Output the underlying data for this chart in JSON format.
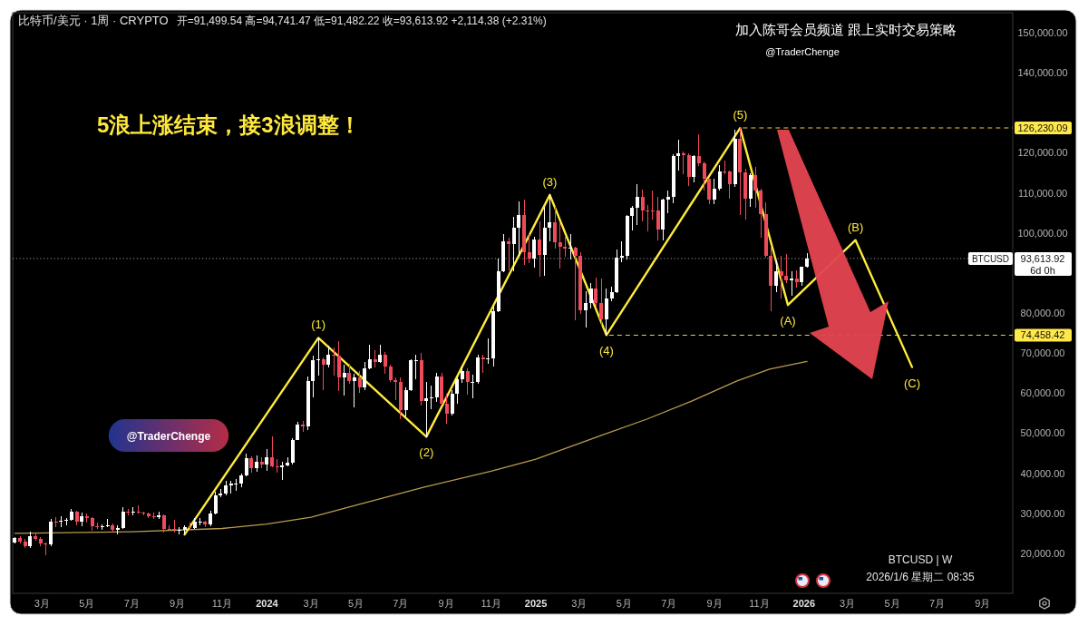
{
  "chart_data": {
    "type": "candlestick",
    "title": "比特币/美元 · 1周 · CRYPTO",
    "subtitle": "开=91,499.54 高=94,741.47 低=91,482.22 收=93,613.92 +2,114.38 (+2.31%)",
    "x": [
      "2023-01-23",
      "2023-01-30",
      "2023-02-06",
      "2023-02-13",
      "2023-02-20",
      "2023-02-27",
      "2023-03-06",
      "2023-03-13",
      "2023-03-20",
      "2023-03-27",
      "2023-04-03",
      "2023-04-10",
      "2023-04-17",
      "2023-04-24",
      "2023-05-01",
      "2023-05-08",
      "2023-05-15",
      "2023-05-22",
      "2023-05-29",
      "2023-06-05",
      "2023-06-12",
      "2023-06-19",
      "2023-06-26",
      "2023-07-03",
      "2023-07-10",
      "2023-07-17",
      "2023-07-24",
      "2023-07-31",
      "2023-08-07",
      "2023-08-14",
      "2023-08-21",
      "2023-08-28",
      "2023-09-04",
      "2023-09-11",
      "2023-09-18",
      "2023-09-25",
      "2023-10-02",
      "2023-10-09",
      "2023-10-16",
      "2023-10-23",
      "2023-10-30",
      "2023-11-06",
      "2023-11-13",
      "2023-11-20",
      "2023-11-27",
      "2023-12-04",
      "2023-12-11",
      "2023-12-18",
      "2023-12-25",
      "2024-01-01",
      "2024-01-08",
      "2024-01-15",
      "2024-01-22",
      "2024-01-29",
      "2024-02-05",
      "2024-02-12",
      "2024-02-19",
      "2024-02-26",
      "2024-03-04",
      "2024-03-11",
      "2024-03-18",
      "2024-03-25",
      "2024-04-01",
      "2024-04-08",
      "2024-04-15",
      "2024-04-22",
      "2024-04-29",
      "2024-05-06",
      "2024-05-13",
      "2024-05-20",
      "2024-05-27",
      "2024-06-03",
      "2024-06-10",
      "2024-06-17",
      "2024-06-24",
      "2024-07-01",
      "2024-07-08",
      "2024-07-15",
      "2024-07-22",
      "2024-07-29",
      "2024-08-05",
      "2024-08-12",
      "2024-08-19",
      "2024-08-26",
      "2024-09-02",
      "2024-09-09",
      "2024-09-16",
      "2024-09-23",
      "2024-09-30",
      "2024-10-07",
      "2024-10-14",
      "2024-10-21",
      "2024-10-28",
      "2024-11-04",
      "2024-11-11",
      "2024-11-18",
      "2024-11-25",
      "2024-12-02",
      "2024-12-09",
      "2024-12-16",
      "2024-12-23",
      "2024-12-30",
      "2025-01-06",
      "2025-01-13",
      "2025-01-20",
      "2025-01-27",
      "2025-02-03",
      "2025-02-10",
      "2025-02-17",
      "2025-02-24",
      "2025-03-03",
      "2025-03-10",
      "2025-03-17",
      "2025-03-24",
      "2025-03-31",
      "2025-04-07",
      "2025-04-14",
      "2025-04-21",
      "2025-04-28",
      "2025-05-05",
      "2025-05-12",
      "2025-05-19",
      "2025-05-26",
      "2025-06-02",
      "2025-06-09",
      "2025-06-16",
      "2025-06-23",
      "2025-06-30",
      "2025-07-07",
      "2025-07-14",
      "2025-07-21",
      "2025-07-28",
      "2025-08-04",
      "2025-08-11",
      "2025-08-18",
      "2025-08-25",
      "2025-09-01",
      "2025-09-08",
      "2025-09-15",
      "2025-09-22",
      "2025-09-29",
      "2025-10-06",
      "2025-10-13",
      "2025-10-20",
      "2025-10-27",
      "2025-11-03",
      "2025-11-10",
      "2025-11-17",
      "2025-11-24",
      "2025-12-01",
      "2025-12-08",
      "2025-12-15",
      "2025-12-22",
      "2025-12-29",
      "2026-01-05"
    ],
    "ohlc": [
      [
        22700,
        23950,
        22500,
        23750
      ],
      [
        23750,
        24250,
        22550,
        22950
      ],
      [
        22950,
        23450,
        21450,
        21800
      ],
      [
        21800,
        25250,
        21550,
        24300
      ],
      [
        24300,
        25150,
        23300,
        23500
      ],
      [
        23500,
        23900,
        21950,
        22350
      ],
      [
        22350,
        22600,
        19550,
        22150
      ],
      [
        22150,
        28450,
        21900,
        28000
      ],
      [
        28000,
        28900,
        26600,
        27950
      ],
      [
        27950,
        29200,
        26550,
        28200
      ],
      [
        28200,
        28800,
        27200,
        28350
      ],
      [
        28350,
        31000,
        28200,
        30300
      ],
      [
        30300,
        30500,
        27100,
        27800
      ],
      [
        27800,
        30000,
        26950,
        29250
      ],
      [
        29250,
        29800,
        27700,
        28800
      ],
      [
        28800,
        29000,
        25800,
        26800
      ],
      [
        26800,
        27600,
        26200,
        26750
      ],
      [
        26750,
        27200,
        25900,
        26850
      ],
      [
        26850,
        28450,
        26600,
        27100
      ],
      [
        27100,
        27350,
        25350,
        25850
      ],
      [
        25850,
        26800,
        24800,
        26350
      ],
      [
        26350,
        31400,
        26250,
        30450
      ],
      [
        30450,
        31000,
        29500,
        30150
      ],
      [
        30150,
        31350,
        29700,
        30300
      ],
      [
        30300,
        31800,
        29950,
        30250
      ],
      [
        30250,
        30350,
        29500,
        29850
      ],
      [
        29850,
        30000,
        28900,
        29300
      ],
      [
        29300,
        30050,
        28600,
        29050
      ],
      [
        29050,
        30250,
        28700,
        29400
      ],
      [
        29400,
        29500,
        25200,
        26100
      ],
      [
        26100,
        26800,
        25800,
        26000
      ],
      [
        26000,
        28150,
        25400,
        25850
      ],
      [
        25850,
        26400,
        24900,
        25850
      ],
      [
        25850,
        26900,
        24950,
        26550
      ],
      [
        26550,
        27450,
        26000,
        26250
      ],
      [
        26250,
        28600,
        26100,
        27950
      ],
      [
        27950,
        28600,
        27200,
        27950
      ],
      [
        27950,
        28000,
        26550,
        27150
      ],
      [
        27150,
        30400,
        26950,
        29950
      ],
      [
        29950,
        35200,
        29800,
        34500
      ],
      [
        34500,
        35900,
        34100,
        35000
      ],
      [
        35000,
        37950,
        34550,
        37050
      ],
      [
        37050,
        37950,
        35000,
        37450
      ],
      [
        37450,
        38400,
        35700,
        37450
      ],
      [
        37450,
        39900,
        36700,
        39450
      ],
      [
        39450,
        44750,
        39300,
        43800
      ],
      [
        43800,
        44000,
        40300,
        41350
      ],
      [
        41350,
        44300,
        40550,
        42850
      ],
      [
        42850,
        43800,
        41400,
        42250
      ],
      [
        42250,
        45900,
        40750,
        43950
      ],
      [
        43950,
        49050,
        41500,
        41750
      ],
      [
        41750,
        43500,
        40300,
        41600
      ],
      [
        41600,
        42800,
        38500,
        42050
      ],
      [
        42050,
        43900,
        41800,
        42600
      ],
      [
        42600,
        48600,
        42300,
        48300
      ],
      [
        48300,
        52800,
        48300,
        52150
      ],
      [
        52150,
        52950,
        50500,
        51700
      ],
      [
        51700,
        64000,
        50900,
        63100
      ],
      [
        63100,
        69200,
        59000,
        68300
      ],
      [
        68300,
        73800,
        64600,
        68400
      ],
      [
        68400,
        68900,
        60800,
        67200
      ],
      [
        67200,
        71800,
        66600,
        69650
      ],
      [
        69650,
        71300,
        64500,
        69350
      ],
      [
        69350,
        72800,
        60650,
        63900
      ],
      [
        63900,
        66900,
        59600,
        64950
      ],
      [
        64950,
        67200,
        62400,
        63100
      ],
      [
        63100,
        64700,
        56500,
        63900
      ],
      [
        63900,
        65500,
        60200,
        61500
      ],
      [
        61500,
        67700,
        60800,
        66250
      ],
      [
        66250,
        71950,
        66100,
        68500
      ],
      [
        68500,
        70600,
        66600,
        67750
      ],
      [
        67750,
        71950,
        67600,
        69650
      ],
      [
        69650,
        70200,
        64950,
        66700
      ],
      [
        66700,
        66950,
        63000,
        63200
      ],
      [
        63200,
        63800,
        58400,
        62700
      ],
      [
        62700,
        63800,
        53500,
        55850
      ],
      [
        55850,
        61350,
        54300,
        60800
      ],
      [
        60800,
        68350,
        60700,
        68250
      ],
      [
        68250,
        69400,
        63500,
        68250
      ],
      [
        68250,
        70000,
        57100,
        58100
      ],
      [
        58100,
        62700,
        49050,
        58700
      ],
      [
        58700,
        61800,
        56100,
        59000
      ],
      [
        59000,
        65050,
        57850,
        64200
      ],
      [
        64200,
        64900,
        57200,
        57300
      ],
      [
        57300,
        59800,
        52550,
        54850
      ],
      [
        54850,
        60650,
        54600,
        59950
      ],
      [
        59950,
        64100,
        57500,
        63550
      ],
      [
        63550,
        66500,
        62600,
        65600
      ],
      [
        65600,
        66000,
        59800,
        62800
      ],
      [
        62800,
        64500,
        58900,
        62850
      ],
      [
        62850,
        69450,
        62500,
        69000
      ],
      [
        69000,
        69500,
        65100,
        68350
      ],
      [
        68350,
        73650,
        67500,
        68750
      ],
      [
        68750,
        81500,
        66800,
        80350
      ],
      [
        80350,
        93450,
        80250,
        90500
      ],
      [
        90500,
        99600,
        90400,
        97900
      ],
      [
        97900,
        98800,
        90800,
        97250
      ],
      [
        97250,
        104000,
        90500,
        101200
      ],
      [
        101200,
        107800,
        94200,
        104400
      ],
      [
        104400,
        108300,
        92200,
        95200
      ],
      [
        95200,
        99900,
        92500,
        93700
      ],
      [
        93700,
        99000,
        91500,
        98300
      ],
      [
        98300,
        102700,
        89250,
        94500
      ],
      [
        94500,
        106400,
        89300,
        101300
      ],
      [
        101300,
        109500,
        98000,
        102600
      ],
      [
        102600,
        106500,
        96200,
        97700
      ],
      [
        97700,
        102500,
        91200,
        96450
      ],
      [
        96450,
        98900,
        94100,
        96100
      ],
      [
        96100,
        99500,
        93400,
        96250
      ],
      [
        96250,
        96500,
        78200,
        94250
      ],
      [
        94250,
        95000,
        80000,
        80700
      ],
      [
        80700,
        85300,
        76600,
        82600
      ],
      [
        82600,
        87400,
        81150,
        86050
      ],
      [
        86050,
        88750,
        81550,
        82400
      ],
      [
        82400,
        88500,
        77000,
        78350
      ],
      [
        78350,
        85900,
        74458.42,
        83700
      ],
      [
        83700,
        86500,
        83000,
        85200
      ],
      [
        85200,
        95700,
        85000,
        93800
      ],
      [
        93800,
        97900,
        92800,
        94250
      ],
      [
        94250,
        104300,
        93400,
        104200
      ],
      [
        104200,
        106600,
        100700,
        106400
      ],
      [
        106400,
        111980,
        102000,
        109000
      ],
      [
        109000,
        110700,
        103100,
        105700
      ],
      [
        105700,
        106800,
        100400,
        105600
      ],
      [
        105600,
        110500,
        103400,
        105500
      ],
      [
        105500,
        108900,
        98200,
        100950
      ],
      [
        100950,
        108500,
        98200,
        108350
      ],
      [
        108350,
        110500,
        105100,
        108950
      ],
      [
        108950,
        119500,
        107500,
        119100
      ],
      [
        119100,
        123200,
        115700,
        119800
      ],
      [
        119800,
        120250,
        114700,
        119450
      ],
      [
        119450,
        119800,
        111900,
        114100
      ],
      [
        114100,
        119300,
        112700,
        119300
      ],
      [
        119300,
        124450,
        116800,
        117400
      ],
      [
        117400,
        117650,
        110700,
        113500
      ],
      [
        113500,
        113500,
        107300,
        108250
      ],
      [
        108250,
        113400,
        107300,
        111150
      ],
      [
        111150,
        116800,
        110600,
        115300
      ],
      [
        115300,
        117900,
        114700,
        115250
      ],
      [
        115250,
        115400,
        108650,
        112100
      ],
      [
        112100,
        125700,
        111700,
        123500
      ],
      [
        123500,
        126230.09,
        104600,
        115150
      ],
      [
        115150,
        116000,
        103500,
        108650
      ],
      [
        108650,
        114800,
        106700,
        114500
      ],
      [
        114500,
        116400,
        106300,
        110550
      ],
      [
        110550,
        111000,
        98900,
        104700
      ],
      [
        104700,
        107500,
        94000,
        94200
      ],
      [
        94200,
        96600,
        80600,
        86800
      ],
      [
        86800,
        93100,
        85300,
        90400
      ],
      [
        90400,
        94100,
        83800,
        89300
      ],
      [
        89300,
        94600,
        87500,
        88200
      ],
      [
        88200,
        90400,
        84400,
        88600
      ],
      [
        88600,
        90500,
        86500,
        87800
      ],
      [
        87800,
        91500,
        87000,
        91500
      ],
      [
        91499.54,
        94741.47,
        91482.22,
        93613.92
      ]
    ],
    "series": [
      {
        "type": "line",
        "color": "#b89c4e",
        "x": [
          "2023-01-23",
          "2023-07-01",
          "2023-11-01",
          "2024-01-01",
          "2024-03-01",
          "2024-05-01",
          "2024-08-01",
          "2024-11-01",
          "2025-01-01",
          "2025-04-01",
          "2025-06-01",
          "2025-08-01",
          "2025-10-01",
          "2025-11-15",
          "2026-01-05"
        ],
        "values": [
          25000,
          25400,
          26200,
          27300,
          29000,
          32000,
          36500,
          40500,
          43500,
          49500,
          53500,
          58000,
          63000,
          66000,
          67900
        ]
      },
      {
        "type": "line",
        "color": "#ffeb3b",
        "x": [
          "2023-09-11",
          "2024-03-11",
          "2024-08-05",
          "2025-01-20",
          "2025-04-07",
          "2025-10-06",
          "2025-12-10",
          "2026-03-12",
          "2026-05-28"
        ],
        "values": [
          24700,
          73800,
          49100,
          109500,
          74500,
          126200,
          82000,
          98200,
          66500
        ]
      }
    ],
    "xlim": [
      "2023-01-20",
      "2026-10-12"
    ],
    "ylim": [
      10000,
      155000
    ],
    "xticks": [
      {
        "value": "2023-03",
        "label": "3月"
      },
      {
        "value": "2023-05",
        "label": "5月"
      },
      {
        "value": "2023-07",
        "label": "7月"
      },
      {
        "value": "2023-09",
        "label": "9月"
      },
      {
        "value": "2023-11",
        "label": "11月"
      },
      {
        "value": "2024",
        "label": "2024"
      },
      {
        "value": "2024-03",
        "label": "3月"
      },
      {
        "value": "2024-05",
        "label": "5月"
      },
      {
        "value": "2024-07",
        "label": "7月"
      },
      {
        "value": "2024-09",
        "label": "9月"
      },
      {
        "value": "2024-11",
        "label": "11月"
      },
      {
        "value": "2025",
        "label": "2025"
      },
      {
        "value": "2025-03",
        "label": "3月"
      },
      {
        "value": "2025-05",
        "label": "5月"
      },
      {
        "value": "2025-07",
        "label": "7月"
      },
      {
        "value": "2025-09",
        "label": "9月"
      },
      {
        "value": "2025-11",
        "label": "11月"
      },
      {
        "value": "2026",
        "label": "2026"
      },
      {
        "value": "2026-03",
        "label": "3月"
      },
      {
        "value": "2026-05",
        "label": "5月"
      },
      {
        "value": "2026-07",
        "label": "7月"
      },
      {
        "value": "2026-09",
        "label": "9月"
      }
    ],
    "yticks": [
      {
        "value": 20000,
        "label": "20,000.00"
      },
      {
        "value": 30000,
        "label": "30,000.00"
      },
      {
        "value": 40000,
        "label": "40,000.00"
      },
      {
        "value": 50000,
        "label": "50,000.00"
      },
      {
        "value": 60000,
        "label": "60,000.00"
      },
      {
        "value": 70000,
        "label": "70,000.00"
      },
      {
        "value": 80000,
        "label": "80,000.00"
      },
      {
        "value": 100000,
        "label": "100,000.00"
      },
      {
        "value": 110000,
        "label": "110,000.00"
      },
      {
        "value": 120000,
        "label": "120,000.00"
      },
      {
        "value": 140000,
        "label": "140,000.00"
      },
      {
        "value": 150000,
        "label": "150,000.00"
      }
    ],
    "ref_lines": [
      {
        "axis": "y",
        "value": 126230.09,
        "label": "126,230.09",
        "color": "#ffe94a",
        "line_style": "dashed"
      },
      {
        "axis": "y",
        "value": 74458.42,
        "label": "74,458.42",
        "color": "#ffe94a",
        "line_style": "dashed"
      },
      {
        "axis": "y",
        "value": 93613.92,
        "label": "93,613.92\n6d 0h",
        "color": "#ffffff",
        "line_style": "dotted"
      }
    ],
    "annotations": [
      "5浪上涨结束，接3浪调整！",
      "加入陈哥会员频道  跟上实时交易策略",
      "@TraderChenge",
      "@TraderChenge",
      "BTCUSD | W",
      "2026/1/6 星期二 08:35",
      {
        "text": "(1)",
        "x": "2024-03-11",
        "y": 73800
      },
      {
        "text": "(2)",
        "x": "2024-08-05",
        "y": 49100
      },
      {
        "text": "(3)",
        "x": "2025-01-20",
        "y": 109500
      },
      {
        "text": "(4)",
        "x": "2025-04-07",
        "y": 74500
      },
      {
        "text": "(5)",
        "x": "2025-10-06",
        "y": 126200
      },
      {
        "text": "(A)",
        "x": "2025-12-10",
        "y": 82000
      },
      {
        "text": "(B)",
        "x": "2026-03-12",
        "y": 98200
      },
      {
        "text": "(C)",
        "x": "2026-05-28",
        "y": 66500
      },
      {
        "text": "BTCUSD",
        "y": 93613.92
      }
    ]
  }
}
